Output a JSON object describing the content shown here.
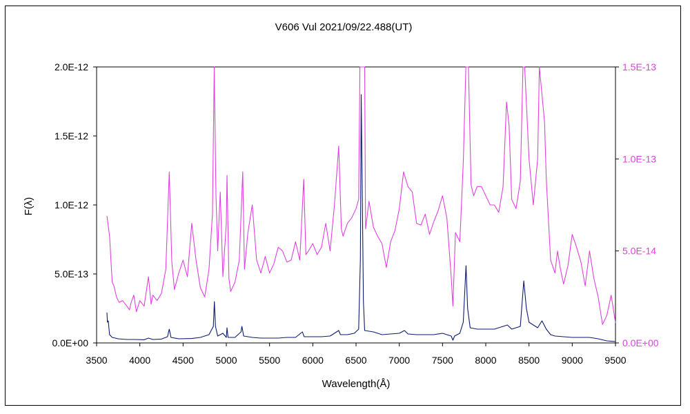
{
  "chart_data": {
    "type": "line",
    "title": "V606 Vul   2021/09/22.488(UT)",
    "xlabel": "Wavelength(Å)",
    "ylabel": "F(λ)",
    "xlim": [
      3500,
      9500
    ],
    "ylim_left": [
      0,
      2e-12
    ],
    "ylim_right": [
      0,
      1.5e-13
    ],
    "x_ticks": [
      "3500",
      "4000",
      "4500",
      "5000",
      "5500",
      "6000",
      "6500",
      "7000",
      "7500",
      "8000",
      "8500",
      "9000",
      "9500"
    ],
    "y_ticks_left": [
      "0.0E+00",
      "5.0E-13",
      "1.0E-12",
      "1.5E-12",
      "2.0E-12"
    ],
    "y_ticks_right": [
      "0.0E+00",
      "5.0E-14",
      "1.0E-13",
      "1.5E-13"
    ],
    "grid": false,
    "colors": {
      "left_series": "#0a1a6e",
      "right_series": "#e040e0",
      "right_axis": "#e040e0"
    },
    "series": [
      {
        "axis": "left",
        "color": "#0a1a6e",
        "points": [
          [
            3620,
            2.2e-13
          ],
          [
            3625,
            1.5e-13
          ],
          [
            3635,
            1.6e-13
          ],
          [
            3650,
            6e-14
          ],
          [
            3680,
            4e-14
          ],
          [
            3750,
            3e-14
          ],
          [
            3850,
            2.5e-14
          ],
          [
            3950,
            2.5e-14
          ],
          [
            4050,
            2.3e-14
          ],
          [
            4100,
            3.5e-14
          ],
          [
            4150,
            2.5e-14
          ],
          [
            4250,
            2.8e-14
          ],
          [
            4320,
            4.5e-14
          ],
          [
            4340,
            1e-13
          ],
          [
            4360,
            4e-14
          ],
          [
            4450,
            3e-14
          ],
          [
            4600,
            3.2e-14
          ],
          [
            4700,
            4e-14
          ],
          [
            4800,
            6e-14
          ],
          [
            4850,
            1.2e-13
          ],
          [
            4862,
            3e-13
          ],
          [
            4875,
            1.2e-13
          ],
          [
            4900,
            5e-14
          ],
          [
            4960,
            7e-14
          ],
          [
            5000,
            4e-14
          ],
          [
            5008,
            1.1e-13
          ],
          [
            5020,
            4e-14
          ],
          [
            5100,
            4e-14
          ],
          [
            5170,
            8e-14
          ],
          [
            5180,
            1.2e-13
          ],
          [
            5200,
            5e-14
          ],
          [
            5300,
            4e-14
          ],
          [
            5400,
            3.5e-14
          ],
          [
            5500,
            3.5e-14
          ],
          [
            5600,
            3.5e-14
          ],
          [
            5700,
            4e-14
          ],
          [
            5800,
            4e-14
          ],
          [
            5880,
            8e-14
          ],
          [
            5900,
            4.5e-14
          ],
          [
            6000,
            4.5e-14
          ],
          [
            6100,
            4.5e-14
          ],
          [
            6200,
            5e-14
          ],
          [
            6300,
            9e-14
          ],
          [
            6320,
            6e-14
          ],
          [
            6400,
            6e-14
          ],
          [
            6480,
            7e-14
          ],
          [
            6530,
            1e-13
          ],
          [
            6550,
            6.1e-13
          ],
          [
            6560,
            1.8e-12
          ],
          [
            6570,
            1.2e-12
          ],
          [
            6585,
            3e-13
          ],
          [
            6600,
            9e-14
          ],
          [
            6700,
            8e-14
          ],
          [
            6800,
            6e-14
          ],
          [
            6900,
            6.5e-14
          ],
          [
            7000,
            7e-14
          ],
          [
            7060,
            9e-14
          ],
          [
            7100,
            6.5e-14
          ],
          [
            7200,
            6e-14
          ],
          [
            7300,
            6e-14
          ],
          [
            7400,
            6e-14
          ],
          [
            7500,
            7e-14
          ],
          [
            7600,
            5e-14
          ],
          [
            7620,
            2e-14
          ],
          [
            7640,
            5e-14
          ],
          [
            7700,
            7e-14
          ],
          [
            7740,
            1.5e-13
          ],
          [
            7772,
            5.6e-13
          ],
          [
            7790,
            2.5e-13
          ],
          [
            7820,
            1.1e-13
          ],
          [
            7900,
            1e-13
          ],
          [
            8000,
            1e-13
          ],
          [
            8100,
            1e-13
          ],
          [
            8200,
            1.2e-13
          ],
          [
            8250,
            1.3e-13
          ],
          [
            8300,
            1e-13
          ],
          [
            8400,
            1.2e-13
          ],
          [
            8440,
            4.5e-13
          ],
          [
            8470,
            2.5e-13
          ],
          [
            8500,
            1.5e-13
          ],
          [
            8600,
            1.1e-13
          ],
          [
            8650,
            1.6e-13
          ],
          [
            8700,
            1e-13
          ],
          [
            8750,
            6e-14
          ],
          [
            8800,
            5e-14
          ],
          [
            8900,
            4.5e-14
          ],
          [
            9000,
            4e-14
          ],
          [
            9100,
            4e-14
          ],
          [
            9200,
            4e-14
          ],
          [
            9300,
            3e-14
          ],
          [
            9400,
            1.5e-14
          ],
          [
            9500,
            1e-14
          ]
        ]
      },
      {
        "axis": "right",
        "color": "#e040e0",
        "points": [
          [
            3620,
            6.9e-14
          ],
          [
            3650,
            5.8e-14
          ],
          [
            3680,
            3.3e-14
          ],
          [
            3700,
            3.1e-14
          ],
          [
            3730,
            2.5e-14
          ],
          [
            3760,
            2.2e-14
          ],
          [
            3800,
            2.3e-14
          ],
          [
            3850,
            2e-14
          ],
          [
            3880,
            1.8e-14
          ],
          [
            3900,
            2.2e-14
          ],
          [
            3930,
            2.6e-14
          ],
          [
            3960,
            1.7e-14
          ],
          [
            4000,
            2.3e-14
          ],
          [
            4050,
            2e-14
          ],
          [
            4100,
            3.6e-14
          ],
          [
            4130,
            2.1e-14
          ],
          [
            4150,
            2.6e-14
          ],
          [
            4200,
            2.3e-14
          ],
          [
            4250,
            2.7e-14
          ],
          [
            4300,
            4e-14
          ],
          [
            4340,
            9.3e-14
          ],
          [
            4370,
            4.4e-14
          ],
          [
            4400,
            2.9e-14
          ],
          [
            4450,
            3.8e-14
          ],
          [
            4500,
            4.5e-14
          ],
          [
            4550,
            3.6e-14
          ],
          [
            4600,
            6.5e-14
          ],
          [
            4650,
            4.5e-14
          ],
          [
            4700,
            3e-14
          ],
          [
            4750,
            2.5e-14
          ],
          [
            4800,
            4e-14
          ],
          [
            4840,
            7e-14
          ],
          [
            4860,
            1.5e-13
          ],
          [
            4880,
            8e-14
          ],
          [
            4900,
            5e-14
          ],
          [
            4930,
            8.2e-14
          ],
          [
            4960,
            3.6e-14
          ],
          [
            5000,
            6.5e-14
          ],
          [
            5008,
            9.1e-14
          ],
          [
            5030,
            3.5e-14
          ],
          [
            5050,
            2.8e-14
          ],
          [
            5100,
            3.3e-14
          ],
          [
            5150,
            4.5e-14
          ],
          [
            5190,
            9.3e-14
          ],
          [
            5210,
            4e-14
          ],
          [
            5250,
            6e-14
          ],
          [
            5300,
            7.5e-14
          ],
          [
            5350,
            4.5e-14
          ],
          [
            5400,
            3.8e-14
          ],
          [
            5450,
            4.7e-14
          ],
          [
            5500,
            3.8e-14
          ],
          [
            5550,
            4.3e-14
          ],
          [
            5600,
            5.2e-14
          ],
          [
            5650,
            5e-14
          ],
          [
            5700,
            4.4e-14
          ],
          [
            5750,
            4.5e-14
          ],
          [
            5800,
            5.5e-14
          ],
          [
            5850,
            4.5e-14
          ],
          [
            5895,
            8.9e-14
          ],
          [
            5920,
            4.8e-14
          ],
          [
            5950,
            5e-14
          ],
          [
            6000,
            5.4e-14
          ],
          [
            6050,
            4.8e-14
          ],
          [
            6100,
            5.2e-14
          ],
          [
            6150,
            6.5e-14
          ],
          [
            6200,
            5e-14
          ],
          [
            6250,
            7.5e-14
          ],
          [
            6300,
            1.07e-13
          ],
          [
            6330,
            6.2e-14
          ],
          [
            6350,
            5.8e-14
          ],
          [
            6400,
            6.5e-14
          ],
          [
            6450,
            6.8e-14
          ],
          [
            6500,
            7.3e-14
          ],
          [
            6530,
            7.8e-14
          ],
          [
            6545,
            1.5e-13
          ],
          [
            6600,
            1.5e-13
          ],
          [
            6610,
            6.2e-14
          ],
          [
            6650,
            7.7e-14
          ],
          [
            6700,
            6.3e-14
          ],
          [
            6750,
            5.8e-14
          ],
          [
            6800,
            5.4e-14
          ],
          [
            6850,
            4.1e-14
          ],
          [
            6900,
            5.5e-14
          ],
          [
            6950,
            6.1e-14
          ],
          [
            7000,
            7.3e-14
          ],
          [
            7050,
            9.3e-14
          ],
          [
            7100,
            8.5e-14
          ],
          [
            7150,
            8.2e-14
          ],
          [
            7200,
            6.5e-14
          ],
          [
            7250,
            6.4e-14
          ],
          [
            7300,
            7e-14
          ],
          [
            7350,
            5.9e-14
          ],
          [
            7400,
            6.6e-14
          ],
          [
            7450,
            7.2e-14
          ],
          [
            7500,
            8e-14
          ],
          [
            7550,
            6.8e-14
          ],
          [
            7600,
            3.6e-14
          ],
          [
            7620,
            2e-14
          ],
          [
            7650,
            6e-14
          ],
          [
            7700,
            5.5e-14
          ],
          [
            7740,
            9.8e-14
          ],
          [
            7770,
            1.5e-13
          ],
          [
            7800,
            1.5e-13
          ],
          [
            7830,
            8.6e-14
          ],
          [
            7860,
            8e-14
          ],
          [
            7900,
            8.5e-14
          ],
          [
            7950,
            8.5e-14
          ],
          [
            8000,
            8e-14
          ],
          [
            8050,
            7.5e-14
          ],
          [
            8100,
            7.5e-14
          ],
          [
            8150,
            7.1e-14
          ],
          [
            8200,
            8.5e-14
          ],
          [
            8240,
            1.31e-13
          ],
          [
            8270,
            1.18e-13
          ],
          [
            8300,
            7.8e-14
          ],
          [
            8350,
            7.3e-14
          ],
          [
            8400,
            8.8e-14
          ],
          [
            8430,
            1.5e-13
          ],
          [
            8450,
            1.5e-13
          ],
          [
            8500,
            1e-13
          ],
          [
            8550,
            7.5e-14
          ],
          [
            8600,
            1e-13
          ],
          [
            8620,
            1.5e-13
          ],
          [
            8680,
            1.2e-13
          ],
          [
            8700,
            8.9e-14
          ],
          [
            8750,
            4.5e-14
          ],
          [
            8800,
            3.8e-14
          ],
          [
            8830,
            5e-14
          ],
          [
            8860,
            4.1e-14
          ],
          [
            8900,
            3.2e-14
          ],
          [
            8950,
            4.2e-14
          ],
          [
            9000,
            5.9e-14
          ],
          [
            9050,
            5.2e-14
          ],
          [
            9100,
            4.4e-14
          ],
          [
            9150,
            3.1e-14
          ],
          [
            9200,
            5e-14
          ],
          [
            9250,
            3.5e-14
          ],
          [
            9300,
            2.5e-14
          ],
          [
            9350,
            1e-14
          ],
          [
            9400,
            1.5e-14
          ],
          [
            9450,
            2.6e-14
          ],
          [
            9480,
            1.7e-14
          ],
          [
            9500,
            1.1e-14
          ]
        ]
      }
    ]
  }
}
